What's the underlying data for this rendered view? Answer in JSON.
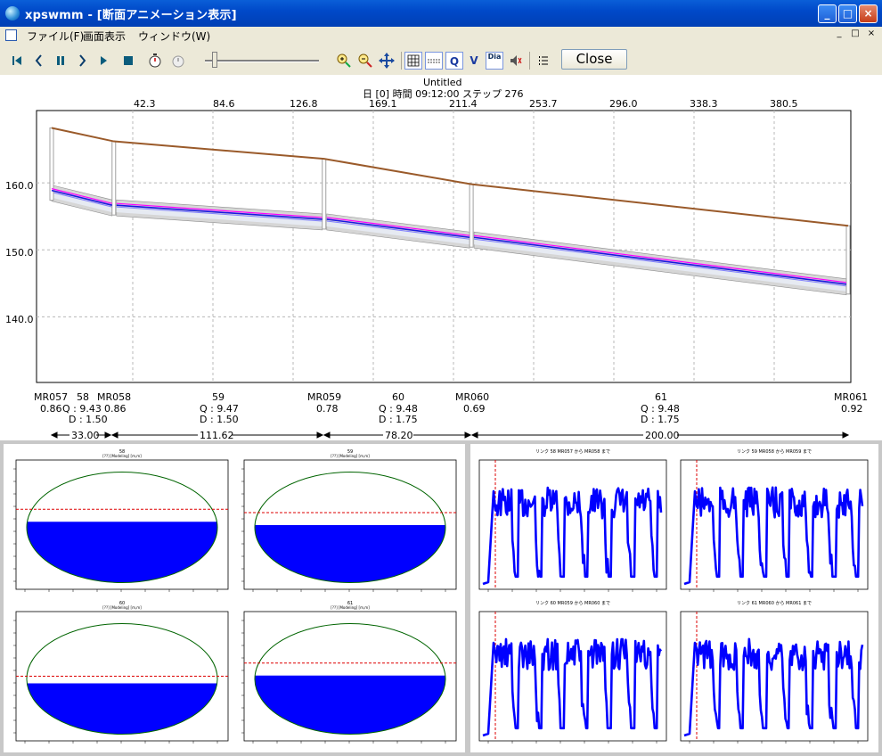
{
  "window": {
    "title": "xpswmm - [断面アニメーション表示]",
    "buttons": {
      "minimize": "_",
      "maximize": "□",
      "close": "×"
    }
  },
  "menu": {
    "items": [
      "ファイル(F)",
      "画面表示",
      "ウィンドウ(W)"
    ],
    "mdi_controls": [
      "_",
      "□",
      "×"
    ]
  },
  "toolbar": {
    "close_label": "Close",
    "icons": [
      "first-frame-icon",
      "step-back-icon",
      "pause-icon",
      "step-forward-icon",
      "play-icon",
      "stop-icon",
      "timer-icon",
      "timer-disabled-icon",
      "zoom-in-icon",
      "zoom-out-icon",
      "pan-icon",
      "grid-icon",
      "hgl-icon",
      "flow-q-icon",
      "velocity-v-icon",
      "diameter-icon",
      "sound-icon",
      "list-icon"
    ],
    "labels": {
      "q": "Q",
      "v": "V",
      "dia": "Dia"
    }
  },
  "profile": {
    "title": "Untitled",
    "subtitle": "日 [0] 時間 09:12:00 ステップ 276",
    "top_ticks": [
      "42.3",
      "84.6",
      "126.8",
      "169.1",
      "211.4",
      "253.7",
      "296.0",
      "338.3",
      "380.5"
    ],
    "y_ticks": [
      "160.0",
      "150.0",
      "140.0"
    ],
    "nodes": [
      {
        "name": "MR057",
        "depth": "0.86"
      },
      {
        "name": "MR058",
        "depth": "0.86"
      },
      {
        "name": "MR059",
        "depth": "0.78"
      },
      {
        "name": "MR060",
        "depth": "0.69"
      },
      {
        "name": "MR061",
        "depth": "0.92"
      }
    ],
    "links": [
      {
        "name": "58",
        "q": "Q :  9.43",
        "d": "D :  1.50",
        "length": "33.00"
      },
      {
        "name": "59",
        "q": "Q :  9.47",
        "d": "D :  1.50",
        "length": "111.62"
      },
      {
        "name": "60",
        "q": "Q :  9.48",
        "d": "D :  1.75",
        "length": "78.20"
      },
      {
        "name": "61",
        "q": "Q :  9.48",
        "d": "D :  1.75",
        "length": "200.00"
      }
    ],
    "chart_data": {
      "type": "line",
      "series": [
        {
          "name": "ground",
          "x": [
            0,
            33,
            144.6,
            222.8,
            422.8
          ],
          "y": [
            168.2,
            166.2,
            163.6,
            159.8,
            153.6
          ]
        },
        {
          "name": "water",
          "x": [
            0,
            33,
            144.6,
            222.8,
            422.8
          ],
          "y": [
            159.0,
            156.8,
            154.7,
            152.0,
            145.0
          ]
        }
      ],
      "colors": {
        "ground": "#9a5a2a",
        "water": "#1818e0",
        "hgl": "#ff00ff",
        "pipe": "#a0a0a0"
      }
    }
  },
  "sections": [
    {
      "title": "58",
      "subtitle": "[??] [Modeling] [m,m]",
      "fill": 0.55
    },
    {
      "title": "59",
      "subtitle": "[??] [Modeling] [m,m]",
      "fill": 0.52
    },
    {
      "title": "60",
      "subtitle": "[??] [Modeling] [m,m]",
      "fill": 0.46
    },
    {
      "title": "61",
      "subtitle": "[??] [Modeling] [m,m]",
      "fill": 0.53
    }
  ],
  "timeseries": [
    {
      "title": "リンク 58 MR057 から MR058 まで"
    },
    {
      "title": "リンク 59 MR058 から MR059 まで"
    },
    {
      "title": "リンク 60 MR059 から MR060 まで"
    },
    {
      "title": "リンク 61 MR060 から MR061 まで"
    }
  ]
}
